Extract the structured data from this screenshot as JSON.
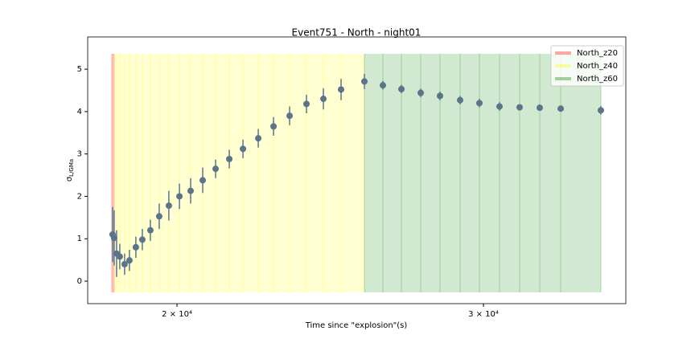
{
  "chart_data": {
    "type": "errorbar",
    "title": "Event751 - North - night01",
    "xlabel": "Time since \"explosion\"(s)",
    "ylabel": "σ",
    "ylabel_sub": "L/GMa",
    "xscale": "log",
    "xlim": [
      17770,
      36220
    ],
    "ylim": [
      -0.53,
      5.76
    ],
    "xticks": [
      {
        "value": 20000,
        "label": "2 × 10⁴"
      },
      {
        "value": 30000,
        "label": "3 × 10⁴"
      }
    ],
    "yticks": [
      0,
      1,
      2,
      3,
      4,
      5
    ],
    "color": "#5b7489",
    "x": [
      18365,
      18404,
      18463,
      18541,
      18660,
      18780,
      18940,
      19103,
      19307,
      19534,
      19785,
      20064,
      20364,
      20692,
      21048,
      21432,
      21824,
      22270,
      22725,
      23213,
      23737,
      24274,
      24849,
      25628,
      26263,
      26915,
      27611,
      28324,
      29088,
      29840,
      30645,
      31472,
      32321,
      33229,
      35043
    ],
    "values": [
      1.1,
      1.02,
      0.65,
      0.58,
      0.4,
      0.49,
      0.8,
      0.98,
      1.2,
      1.53,
      1.78,
      2.0,
      2.13,
      2.38,
      2.65,
      2.88,
      3.12,
      3.37,
      3.65,
      3.9,
      4.18,
      4.3,
      4.52,
      4.71,
      4.62,
      4.53,
      4.44,
      4.37,
      4.27,
      4.2,
      4.12,
      4.1,
      4.09,
      4.07,
      4.03
    ],
    "errors": [
      0.65,
      0.65,
      0.55,
      0.3,
      0.25,
      0.25,
      0.25,
      0.25,
      0.25,
      0.3,
      0.35,
      0.3,
      0.3,
      0.3,
      0.22,
      0.22,
      0.22,
      0.22,
      0.22,
      0.22,
      0.22,
      0.25,
      0.25,
      0.18,
      0.1,
      0.1,
      0.1,
      0.1,
      0.1,
      0.1,
      0.1,
      0.05,
      0.05,
      0.05,
      0.1
    ],
    "series": [
      {
        "name": "North_z20",
        "color": "#ff0000",
        "start": 18328,
        "end": 18404
      },
      {
        "name": "North_z40",
        "color": "#ffff00",
        "start": 18404,
        "end": 25628
      },
      {
        "name": "North_z60",
        "color": "#008000",
        "start": 25628,
        "end": 35043
      }
    ],
    "legend": "upper right"
  }
}
